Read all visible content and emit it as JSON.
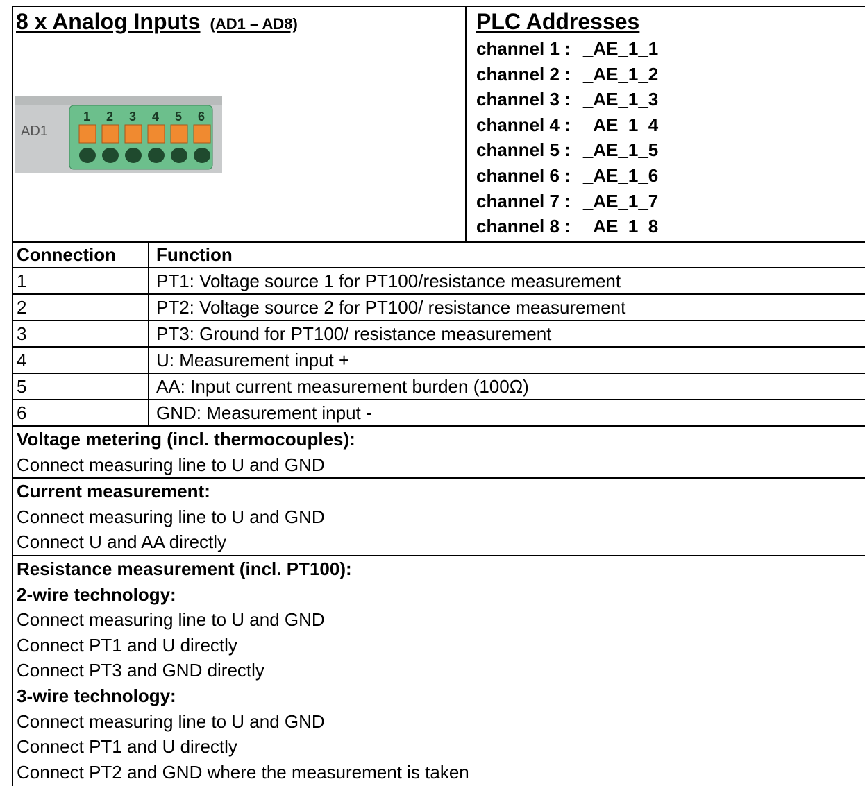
{
  "header": {
    "title": "8 x Analog Inputs",
    "subtitle": "(AD1 – AD8)",
    "image": {
      "label": "AD1",
      "pins": [
        "1",
        "2",
        "3",
        "4",
        "5",
        "6"
      ]
    }
  },
  "plc": {
    "title": "PLC Addresses",
    "channels": [
      {
        "label": "channel 1 :",
        "address": "_AE_1_1"
      },
      {
        "label": "channel 2 :",
        "address": "_AE_1_2"
      },
      {
        "label": "channel 3 :",
        "address": "_AE_1_3"
      },
      {
        "label": "channel 4 :",
        "address": "_AE_1_4"
      },
      {
        "label": "channel 5 :",
        "address": "_AE_1_5"
      },
      {
        "label": "channel 6 :",
        "address": "_AE_1_6"
      },
      {
        "label": "channel 7 :",
        "address": "_AE_1_7"
      },
      {
        "label": "channel 8 :",
        "address": "_AE_1_8"
      }
    ]
  },
  "table": {
    "headers": [
      "Connection",
      "Function"
    ],
    "rows": [
      [
        "1",
        "PT1: Voltage source 1 for PT100/resistance measurement"
      ],
      [
        "2",
        "PT2: Voltage source 2 for PT100/ resistance measurement"
      ],
      [
        "3",
        "PT3: Ground for PT100/ resistance measurement"
      ],
      [
        "4",
        "U: Measurement input +"
      ],
      [
        "5",
        "AA: Input current measurement burden (100Ω)"
      ],
      [
        "6",
        "GND: Measurement input -"
      ]
    ]
  },
  "sections": [
    {
      "heading": "Voltage metering (incl. thermocouples):",
      "lines": [
        "Connect measuring line to U and GND"
      ]
    },
    {
      "heading": "Current measurement:",
      "lines": [
        "Connect measuring line to U and GND",
        "Connect U and AA directly"
      ]
    },
    {
      "heading": "Resistance measurement (incl. PT100):",
      "subsections": [
        {
          "heading": "2-wire technology:",
          "lines": [
            "Connect measuring line to U and GND",
            "Connect PT1 and U directly",
            "Connect PT3 and GND directly"
          ]
        },
        {
          "heading": "3-wire technology:",
          "lines": [
            "Connect measuring line to U and GND",
            "Connect PT1 and U directly",
            "Connect PT2 and GND where the measurement is taken"
          ]
        }
      ]
    }
  ]
}
